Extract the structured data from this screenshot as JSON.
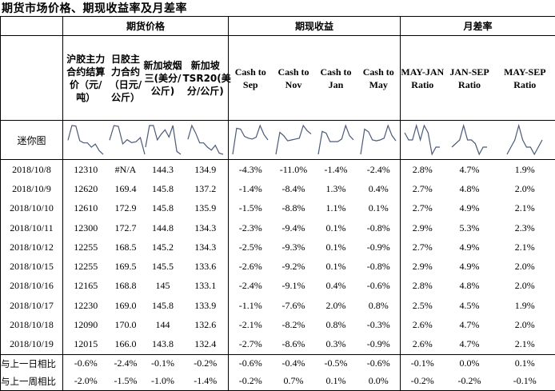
{
  "title": "期货市场价格、期现收益率及月差率",
  "groups": {
    "futures": "期货价格",
    "cash": "期现收益",
    "spread": "月差率"
  },
  "columns": [
    "沪胶主力合约结算价（元/吨）",
    "日胶主力合约（日元/公斤）",
    "新加坡烟三(美分/公斤)",
    "新加坡TSR20(美分/公斤)",
    "Cash to Sep",
    "Cash to Nov",
    "Cash to Jan",
    "Cash to May",
    "MAY-JAN Ratio",
    "JAN-SEP Ratio",
    "MAY-SEP Ratio"
  ],
  "sparkline_label": "迷你图",
  "rows": [
    {
      "date": "2018/10/8",
      "values": [
        "12310",
        "#N/A",
        "144.3",
        "134.9",
        "-4.3%",
        "-11.0%",
        "-1.4%",
        "-2.4%",
        "2.8%",
        "4.7%",
        "1.9%"
      ]
    },
    {
      "date": "2018/10/9",
      "values": [
        "12620",
        "169.4",
        "145.8",
        "137.2",
        "-1.4%",
        "-8.4%",
        "1.3%",
        "0.4%",
        "2.7%",
        "4.8%",
        "2.0%"
      ]
    },
    {
      "date": "2018/10/10",
      "values": [
        "12610",
        "172.9",
        "145.8",
        "135.9",
        "-1.5%",
        "-8.8%",
        "1.1%",
        "0.1%",
        "2.7%",
        "4.9%",
        "2.1%"
      ]
    },
    {
      "date": "2018/10/11",
      "values": [
        "12300",
        "172.7",
        "144.8",
        "134.3",
        "-2.3%",
        "-9.4%",
        "0.1%",
        "-0.8%",
        "2.9%",
        "5.3%",
        "2.3%"
      ]
    },
    {
      "date": "2018/10/12",
      "values": [
        "12255",
        "168.5",
        "145.2",
        "134.3",
        "-2.5%",
        "-9.3%",
        "0.1%",
        "-0.9%",
        "2.7%",
        "4.9%",
        "2.1%"
      ]
    },
    {
      "date": "2018/10/15",
      "values": [
        "12255",
        "169.5",
        "145.5",
        "133.6",
        "-2.6%",
        "-9.2%",
        "0.1%",
        "-0.8%",
        "2.9%",
        "4.9%",
        "2.0%"
      ]
    },
    {
      "date": "2018/10/16",
      "values": [
        "12165",
        "168.8",
        "145",
        "133.1",
        "-2.4%",
        "-9.1%",
        "0.4%",
        "-0.6%",
        "2.8%",
        "4.8%",
        "2.0%"
      ]
    },
    {
      "date": "2018/10/17",
      "values": [
        "12230",
        "169.0",
        "145.8",
        "133.9",
        "-1.1%",
        "-7.6%",
        "2.0%",
        "0.8%",
        "2.5%",
        "4.5%",
        "1.9%"
      ]
    },
    {
      "date": "2018/10/18",
      "values": [
        "12090",
        "170.0",
        "144",
        "132.6",
        "-2.1%",
        "-8.2%",
        "0.8%",
        "-0.3%",
        "2.6%",
        "4.7%",
        "2.0%"
      ]
    },
    {
      "date": "2018/10/19",
      "values": [
        "12015",
        "166.0",
        "143.8",
        "132.4",
        "-2.7%",
        "-8.6%",
        "0.3%",
        "-0.9%",
        "2.6%",
        "4.7%",
        "2.1%"
      ]
    }
  ],
  "comparisons": [
    {
      "label": "与上一日相比",
      "values": [
        "-0.6%",
        "-2.4%",
        "-0.1%",
        "-0.2%",
        "-0.6%",
        "-0.4%",
        "-0.5%",
        "-0.6%",
        "-0.1%",
        "0.0%",
        "0.1%"
      ]
    },
    {
      "label": "与上一周相比",
      "values": [
        "-2.0%",
        "-1.5%",
        "-1.0%",
        "-1.4%",
        "-0.2%",
        "0.7%",
        "0.1%",
        "0.0%",
        "-0.2%",
        "-0.2%",
        "-0.1%"
      ]
    }
  ],
  "sparklines": [
    [
      12310,
      12620,
      12610,
      12300,
      12255,
      12255,
      12165,
      12230,
      12090,
      12015
    ],
    [
      169.4,
      172.9,
      172.7,
      168.5,
      169.5,
      168.8,
      169.0,
      170.0,
      166.0
    ],
    [
      144.3,
      145.8,
      145.8,
      144.8,
      145.2,
      145.5,
      145.0,
      145.8,
      144.0,
      143.8
    ],
    [
      134.9,
      137.2,
      135.9,
      134.3,
      134.3,
      133.6,
      133.1,
      133.9,
      132.6,
      132.4
    ],
    [
      -4.3,
      -1.4,
      -1.5,
      -2.3,
      -2.5,
      -2.6,
      -2.4,
      -1.1,
      -2.1,
      -2.7
    ],
    [
      -11.0,
      -8.4,
      -8.8,
      -9.4,
      -9.3,
      -9.2,
      -9.1,
      -7.6,
      -8.2,
      -8.6
    ],
    [
      -1.4,
      1.3,
      1.1,
      0.1,
      0.1,
      0.1,
      0.4,
      2.0,
      0.8,
      0.3
    ],
    [
      -2.4,
      0.4,
      0.1,
      -0.8,
      -0.9,
      -0.8,
      -0.6,
      0.8,
      -0.3,
      -0.9
    ],
    [
      2.8,
      2.7,
      2.7,
      2.9,
      2.7,
      2.9,
      2.8,
      2.5,
      2.6,
      2.6
    ],
    [
      4.7,
      4.8,
      4.9,
      5.3,
      4.9,
      4.9,
      4.8,
      4.5,
      4.7,
      4.7
    ],
    [
      1.9,
      2.0,
      2.1,
      2.3,
      2.1,
      2.0,
      2.0,
      1.9,
      2.0,
      2.1
    ]
  ]
}
